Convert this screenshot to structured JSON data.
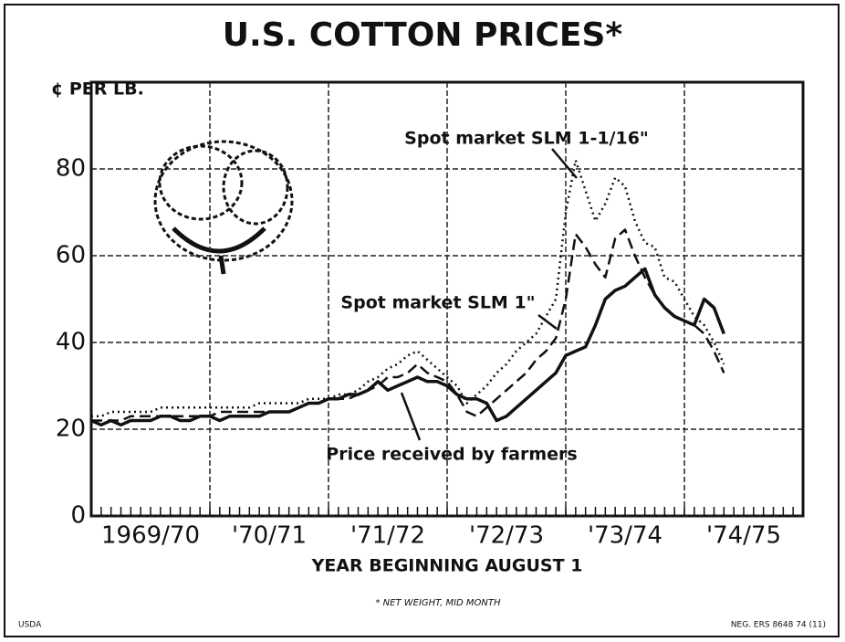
{
  "chart_data": {
    "type": "line",
    "title": "U.S. COTTON PRICES*",
    "y_label": "¢ PER LB.",
    "x_label": "YEAR BEGINNING AUGUST 1",
    "footnote": "* NET WEIGHT, MID MONTH",
    "source_left": "USDA",
    "source_right": "NEG. ERS 8648 74 (11)",
    "annotations": [
      "Spot market SLM 1-1/16\"",
      "Spot market SLM 1\"",
      "Price received by farmers"
    ],
    "x": [
      0,
      1,
      2,
      3,
      4,
      5,
      6,
      7,
      8,
      9,
      10,
      11,
      12,
      13,
      14,
      15,
      16,
      17,
      18,
      19,
      20,
      21,
      22,
      23,
      24,
      25,
      26,
      27,
      28,
      29,
      30,
      31,
      32,
      33,
      34,
      35,
      36,
      37,
      38,
      39,
      40,
      41,
      42,
      43,
      44,
      45,
      46,
      47,
      48,
      49,
      50,
      51,
      52,
      53,
      54,
      55,
      56,
      57,
      58,
      59,
      60,
      61,
      62,
      63,
      64
    ],
    "series": [
      {
        "name": "Spot market SLM 1-1/16\"",
        "style": "dotted",
        "color": "#111",
        "values": [
          23,
          23,
          24,
          24,
          24,
          24,
          24,
          25,
          25,
          25,
          25,
          25,
          25,
          25,
          25,
          25,
          25,
          26,
          26,
          26,
          26,
          26,
          27,
          27,
          27,
          28,
          28,
          29,
          31,
          32,
          34,
          35,
          37,
          38,
          36,
          34,
          32,
          30,
          26,
          28,
          30,
          33,
          35,
          38,
          40,
          42,
          46,
          50,
          70,
          82,
          75,
          68,
          72,
          78,
          76,
          68,
          63,
          62,
          55,
          54,
          50,
          46,
          44,
          40,
          35
        ]
      },
      {
        "name": "Spot market SLM 1\"",
        "style": "dashed",
        "color": "#111",
        "values": [
          22,
          22,
          22,
          22,
          23,
          23,
          23,
          23,
          23,
          23,
          23,
          23,
          23,
          24,
          24,
          24,
          24,
          24,
          24,
          24,
          24,
          25,
          26,
          26,
          27,
          27,
          27,
          28,
          29,
          30,
          32,
          32,
          33,
          35,
          33,
          32,
          31,
          28,
          24,
          23,
          25,
          27,
          29,
          31,
          33,
          36,
          38,
          41,
          50,
          65,
          62,
          58,
          55,
          64,
          66,
          60,
          55,
          51,
          48,
          46,
          45,
          44,
          42,
          38,
          33
        ]
      },
      {
        "name": "Price received by farmers",
        "style": "solid",
        "color": "#111",
        "values": [
          22,
          21,
          22,
          21,
          22,
          22,
          22,
          23,
          23,
          22,
          22,
          23,
          23,
          22,
          23,
          23,
          23,
          23,
          24,
          24,
          24,
          25,
          26,
          26,
          27,
          27,
          28,
          28,
          29,
          31,
          29,
          30,
          31,
          32,
          31,
          31,
          30,
          28,
          27,
          27,
          26,
          22,
          23,
          25,
          27,
          29,
          31,
          33,
          37,
          38,
          39,
          44,
          50,
          52,
          53,
          55,
          57,
          51,
          48,
          46,
          45,
          44,
          50,
          48,
          42
        ]
      }
    ],
    "xlim": [
      0,
      72
    ],
    "xticks": [
      {
        "value": 6,
        "label": "1969/70"
      },
      {
        "value": 18,
        "label": "'70/71"
      },
      {
        "value": 30,
        "label": "'71/72"
      },
      {
        "value": 42,
        "label": "'72/73"
      },
      {
        "value": 54,
        "label": "'73/74"
      },
      {
        "value": 66,
        "label": "'74/75"
      }
    ],
    "xgrid": [
      12,
      24,
      36,
      48,
      60
    ],
    "minor_tick_step": 1,
    "ylim": [
      0,
      100
    ],
    "yticks": [
      0,
      20,
      40,
      60,
      80
    ],
    "grid": true
  }
}
